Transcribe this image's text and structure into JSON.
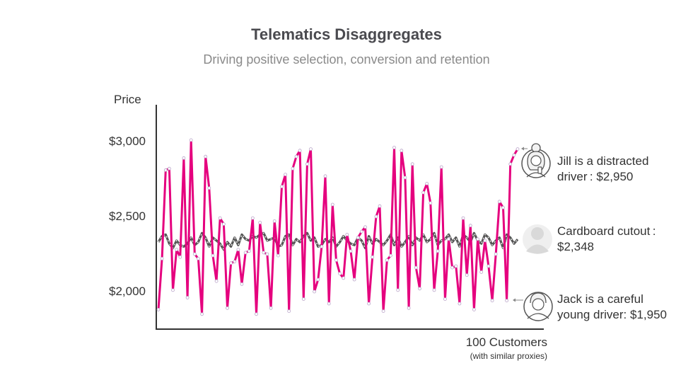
{
  "chart_data": {
    "type": "line",
    "title": "Telematics Disaggregates",
    "subtitle": "Driving positive selection, conversion and retention",
    "ylabel": "Price",
    "xlabel": "100 Customers",
    "xlabel_note": "(with similar proxies)",
    "yticks": [
      {
        "value": 3000,
        "label": "$3,000"
      },
      {
        "value": 2500,
        "label": "$2,500"
      },
      {
        "value": 2000,
        "label": "$2,000"
      }
    ],
    "ylim": [
      1750,
      3250
    ],
    "xlim": [
      0,
      100
    ],
    "grid": false,
    "series": [
      {
        "color": "#e5007e",
        "style": "solid",
        "values": [
          1880,
          2220,
          2810,
          2820,
          2010,
          2280,
          2230,
          2890,
          1960,
          3010,
          2250,
          2220,
          1850,
          2900,
          2690,
          2240,
          2070,
          2490,
          2450,
          1890,
          2190,
          2200,
          2280,
          2050,
          2260,
          2270,
          2490,
          1850,
          2460,
          2260,
          2250,
          1890,
          2470,
          2240,
          2700,
          2780,
          1870,
          2820,
          2900,
          2940,
          1950,
          2850,
          2950,
          2000,
          2080,
          2300,
          2770,
          1920,
          2580,
          2210,
          2120,
          2090,
          2380,
          2270,
          2080,
          2360,
          2400,
          2430,
          1920,
          2230,
          2500,
          2570,
          1870,
          2210,
          2240,
          2960,
          2010,
          2940,
          2760,
          1890,
          2850,
          2160,
          2020,
          2660,
          2720,
          2590,
          2010,
          2270,
          2830,
          1950,
          2350,
          2160,
          2170,
          1920,
          2490,
          2110,
          2440,
          1880,
          2350,
          2130,
          2340,
          2170,
          1940,
          2250,
          2600,
          2560,
          1940,
          2850,
          2910,
          2950
        ]
      },
      {
        "color": "#555555",
        "style": "solid-with-white-dashes",
        "values": [
          2330,
          2370,
          2380,
          2320,
          2290,
          2340,
          2310,
          2300,
          2320,
          2360,
          2310,
          2330,
          2390,
          2360,
          2300,
          2360,
          2340,
          2320,
          2280,
          2330,
          2300,
          2360,
          2310,
          2380,
          2350,
          2340,
          2370,
          2360,
          2380,
          2390,
          2340,
          2350,
          2360,
          2300,
          2310,
          2370,
          2380,
          2310,
          2350,
          2330,
          2370,
          2390,
          2340,
          2360,
          2300,
          2310,
          2350,
          2330,
          2360,
          2300,
          2330,
          2370,
          2340,
          2320,
          2310,
          2360,
          2340,
          2290,
          2370,
          2320,
          2350,
          2330,
          2310,
          2340,
          2380,
          2310,
          2360,
          2300,
          2330,
          2370,
          2310,
          2360,
          2340,
          2380,
          2330,
          2350,
          2390,
          2310,
          2340,
          2350,
          2380,
          2330,
          2360,
          2300,
          2380,
          2360,
          2330,
          2390,
          2340,
          2320,
          2380,
          2360,
          2310,
          2340,
          2360,
          2290,
          2380,
          2360,
          2320,
          2348
        ]
      }
    ]
  },
  "callouts": {
    "jill": {
      "line1": "Jill is a distracted",
      "line2": "driver : $2,950",
      "price": 2950
    },
    "cutout": {
      "line1": "Cardboard cutout :",
      "line2": "$2,348",
      "price": 2348
    },
    "jack": {
      "line1": "Jack is a careful",
      "line2": "young driver: $1,950",
      "price": 1950
    }
  },
  "icons": {
    "jill": "woman-with-phone-icon",
    "cutout": "person-silhouette-icon",
    "jack": "young-man-icon"
  },
  "colors": {
    "pink": "#e5007e",
    "gray_line": "#555555",
    "axis": "#333333",
    "title": "#4a4a4f",
    "subtitle": "#8a8a8a"
  }
}
